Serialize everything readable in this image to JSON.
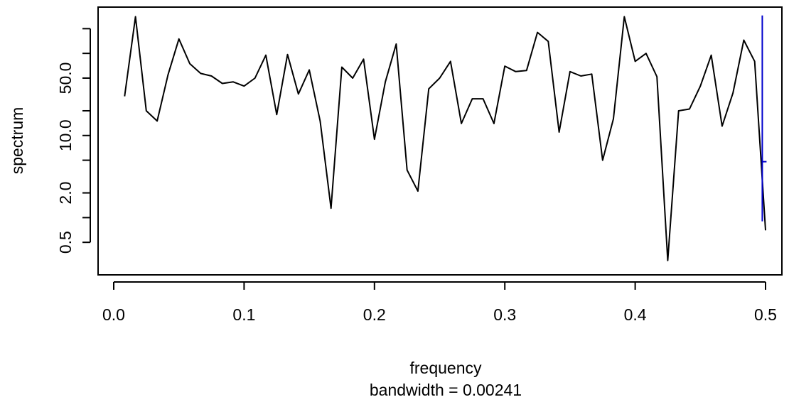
{
  "chart_data": {
    "type": "line",
    "xlabel": "frequency",
    "ylabel": "spectrum",
    "subtitle": "bandwidth = 0.00241",
    "y_scale": "log",
    "xlim": [
      0.0,
      0.5
    ],
    "ylim": [
      0.25,
      300
    ],
    "x_ticks": [
      0.0,
      0.1,
      0.2,
      0.3,
      0.4,
      0.5
    ],
    "x_tick_labels": [
      "0.0",
      "0.1",
      "0.2",
      "0.3",
      "0.4",
      "0.5"
    ],
    "y_ticks": [
      0.5,
      1.0,
      2.0,
      5.0,
      10.0,
      20.0,
      50.0,
      100.0,
      200.0
    ],
    "y_tick_labels": [
      "0.5",
      "",
      "2.0",
      "",
      "10.0",
      "",
      "50.0",
      "",
      ""
    ],
    "grid": false,
    "line_color": "#000000",
    "ci_color": "#0000cc",
    "ci_marker": {
      "x": 0.4975,
      "lower": 0.9,
      "center": 4.8,
      "upper": 290
    },
    "series": [
      {
        "x": [
          0.00833,
          0.01667,
          0.025,
          0.03333,
          0.04167,
          0.05,
          0.05833,
          0.06667,
          0.075,
          0.08333,
          0.09167,
          0.1,
          0.10833,
          0.11667,
          0.125,
          0.13333,
          0.14167,
          0.15,
          0.15833,
          0.16667,
          0.175,
          0.18333,
          0.19167,
          0.2,
          0.20833,
          0.21667,
          0.225,
          0.23333,
          0.24167,
          0.25,
          0.25833,
          0.26667,
          0.275,
          0.28333,
          0.29167,
          0.3,
          0.30833,
          0.31667,
          0.325,
          0.33333,
          0.34167,
          0.35,
          0.35833,
          0.36667,
          0.375,
          0.38333,
          0.39167,
          0.4,
          0.40833,
          0.41667,
          0.425,
          0.43333,
          0.44167,
          0.45,
          0.45833,
          0.46667,
          0.475,
          0.48333,
          0.49167,
          0.5
        ],
        "y": [
          30,
          280,
          20,
          15,
          55,
          150,
          75,
          57,
          53,
          43,
          45,
          40,
          50,
          95,
          18,
          97,
          32,
          63,
          15,
          1.3,
          68,
          50,
          85,
          9,
          45,
          130,
          3.8,
          2.1,
          37,
          50,
          80,
          14,
          28,
          28,
          14,
          70,
          60,
          62,
          180,
          140,
          11,
          60,
          53,
          56,
          5.0,
          16,
          280,
          80,
          100,
          52,
          0.3,
          20,
          21,
          40,
          95,
          13,
          33,
          145,
          80,
          0.7
        ]
      }
    ]
  }
}
